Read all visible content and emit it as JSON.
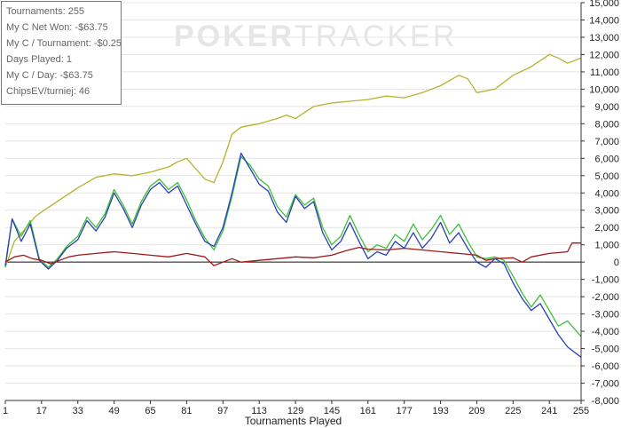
{
  "stats": [
    "Tournaments: 255",
    "My C Net Won: -$63.75",
    "My C / Tournament: -$0.25",
    "Days Played: 1",
    "My C / Day: -$63.75",
    "ChipsEV/turniej: 46"
  ],
  "watermark": {
    "bold": "POKER",
    "light": "TRACKER"
  },
  "chart_data": {
    "type": "line",
    "xlabel": "Tournaments Played",
    "x_ticks": [
      1,
      17,
      33,
      49,
      65,
      81,
      97,
      113,
      129,
      145,
      161,
      177,
      193,
      209,
      225,
      241,
      255
    ],
    "xlim": [
      1,
      255
    ],
    "ylim": [
      -8000,
      15000
    ],
    "y_ticks": [
      -8000,
      -7000,
      -6000,
      -5000,
      -4000,
      -3000,
      -2000,
      -1000,
      0,
      1000,
      2000,
      3000,
      4000,
      5000,
      6000,
      7000,
      8000,
      9000,
      10000,
      11000,
      12000,
      13000,
      14000,
      15000
    ],
    "y_tick_labels": [
      "-8,000",
      "-7,000",
      "-6,000",
      "-5,000",
      "-4,000",
      "-3,000",
      "-2,000",
      "-1,000",
      "0",
      "1,000",
      "2,000",
      "3,000",
      "4,000",
      "5,000",
      "6,000",
      "7,000",
      "8,000",
      "9,000",
      "10,000",
      "11,000",
      "12,000",
      "13,000",
      "14,000",
      "15,000"
    ],
    "grid": "horizontal",
    "legend": "none",
    "series": [
      {
        "color": "#b5b42d",
        "points": [
          [
            1,
            -300
          ],
          [
            5,
            1200
          ],
          [
            9,
            1800
          ],
          [
            14,
            2600
          ],
          [
            17,
            2900
          ],
          [
            25,
            3600
          ],
          [
            33,
            4300
          ],
          [
            41,
            4900
          ],
          [
            49,
            5100
          ],
          [
            57,
            5000
          ],
          [
            65,
            5200
          ],
          [
            73,
            5500
          ],
          [
            77,
            5800
          ],
          [
            81,
            6000
          ],
          [
            85,
            5400
          ],
          [
            89,
            4800
          ],
          [
            93,
            4600
          ],
          [
            97,
            5800
          ],
          [
            101,
            7400
          ],
          [
            105,
            7800
          ],
          [
            113,
            8000
          ],
          [
            121,
            8300
          ],
          [
            125,
            8500
          ],
          [
            129,
            8300
          ],
          [
            137,
            9000
          ],
          [
            145,
            9200
          ],
          [
            153,
            9300
          ],
          [
            161,
            9400
          ],
          [
            169,
            9600
          ],
          [
            177,
            9500
          ],
          [
            185,
            9800
          ],
          [
            193,
            10200
          ],
          [
            201,
            10800
          ],
          [
            205,
            10600
          ],
          [
            209,
            9800
          ],
          [
            217,
            10000
          ],
          [
            225,
            10800
          ],
          [
            233,
            11300
          ],
          [
            241,
            12000
          ],
          [
            245,
            11800
          ],
          [
            249,
            11500
          ],
          [
            255,
            11800
          ]
        ]
      },
      {
        "color": "#3cbf3c",
        "points": [
          [
            1,
            -300
          ],
          [
            4,
            2500
          ],
          [
            8,
            1500
          ],
          [
            12,
            2400
          ],
          [
            16,
            200
          ],
          [
            20,
            -300
          ],
          [
            24,
            200
          ],
          [
            28,
            900
          ],
          [
            33,
            1500
          ],
          [
            37,
            2600
          ],
          [
            41,
            2000
          ],
          [
            45,
            2800
          ],
          [
            49,
            4200
          ],
          [
            53,
            3300
          ],
          [
            57,
            2200
          ],
          [
            61,
            3500
          ],
          [
            65,
            4400
          ],
          [
            69,
            4800
          ],
          [
            73,
            4200
          ],
          [
            77,
            4600
          ],
          [
            81,
            3600
          ],
          [
            85,
            2400
          ],
          [
            89,
            1400
          ],
          [
            93,
            700
          ],
          [
            97,
            1800
          ],
          [
            101,
            3800
          ],
          [
            105,
            6100
          ],
          [
            109,
            5600
          ],
          [
            113,
            4800
          ],
          [
            117,
            4400
          ],
          [
            121,
            3200
          ],
          [
            125,
            2600
          ],
          [
            129,
            3900
          ],
          [
            133,
            3300
          ],
          [
            137,
            3700
          ],
          [
            141,
            2000
          ],
          [
            145,
            1000
          ],
          [
            149,
            1500
          ],
          [
            153,
            2700
          ],
          [
            157,
            1600
          ],
          [
            161,
            600
          ],
          [
            165,
            1000
          ],
          [
            169,
            800
          ],
          [
            173,
            1600
          ],
          [
            177,
            1200
          ],
          [
            181,
            2200
          ],
          [
            185,
            1300
          ],
          [
            189,
            1900
          ],
          [
            193,
            2700
          ],
          [
            197,
            1600
          ],
          [
            201,
            2200
          ],
          [
            205,
            1200
          ],
          [
            209,
            300
          ],
          [
            213,
            200
          ],
          [
            217,
            300
          ],
          [
            221,
            100
          ],
          [
            225,
            -800
          ],
          [
            229,
            -1800
          ],
          [
            233,
            -2600
          ],
          [
            237,
            -1900
          ],
          [
            241,
            -2800
          ],
          [
            245,
            -3700
          ],
          [
            249,
            -3400
          ],
          [
            255,
            -4300
          ]
        ]
      },
      {
        "color": "#2b3fb5",
        "points": [
          [
            1,
            -200
          ],
          [
            4,
            2500
          ],
          [
            8,
            1200
          ],
          [
            12,
            2200
          ],
          [
            16,
            100
          ],
          [
            20,
            -400
          ],
          [
            24,
            100
          ],
          [
            28,
            800
          ],
          [
            33,
            1300
          ],
          [
            37,
            2400
          ],
          [
            41,
            1800
          ],
          [
            45,
            2600
          ],
          [
            49,
            4000
          ],
          [
            53,
            3100
          ],
          [
            57,
            2000
          ],
          [
            61,
            3300
          ],
          [
            65,
            4200
          ],
          [
            69,
            4600
          ],
          [
            73,
            4000
          ],
          [
            77,
            4400
          ],
          [
            81,
            3300
          ],
          [
            85,
            2200
          ],
          [
            89,
            1200
          ],
          [
            93,
            900
          ],
          [
            97,
            2000
          ],
          [
            101,
            4000
          ],
          [
            105,
            6300
          ],
          [
            109,
            5400
          ],
          [
            113,
            4500
          ],
          [
            117,
            4100
          ],
          [
            121,
            2900
          ],
          [
            125,
            2300
          ],
          [
            129,
            3800
          ],
          [
            133,
            3100
          ],
          [
            137,
            3500
          ],
          [
            141,
            1700
          ],
          [
            145,
            700
          ],
          [
            149,
            1200
          ],
          [
            153,
            2300
          ],
          [
            157,
            1200
          ],
          [
            161,
            200
          ],
          [
            165,
            600
          ],
          [
            169,
            400
          ],
          [
            173,
            1200
          ],
          [
            177,
            800
          ],
          [
            181,
            1700
          ],
          [
            185,
            800
          ],
          [
            189,
            1400
          ],
          [
            193,
            2300
          ],
          [
            197,
            1100
          ],
          [
            201,
            1700
          ],
          [
            205,
            800
          ],
          [
            209,
            0
          ],
          [
            213,
            -300
          ],
          [
            217,
            200
          ],
          [
            221,
            -100
          ],
          [
            225,
            -1200
          ],
          [
            229,
            -2100
          ],
          [
            233,
            -2800
          ],
          [
            237,
            -2400
          ],
          [
            241,
            -3300
          ],
          [
            245,
            -4200
          ],
          [
            249,
            -4900
          ],
          [
            255,
            -5500
          ]
        ]
      },
      {
        "color": "#a01818",
        "points": [
          [
            1,
            0
          ],
          [
            5,
            300
          ],
          [
            9,
            400
          ],
          [
            13,
            200
          ],
          [
            17,
            100
          ],
          [
            21,
            -100
          ],
          [
            25,
            100
          ],
          [
            29,
            300
          ],
          [
            33,
            400
          ],
          [
            41,
            500
          ],
          [
            49,
            600
          ],
          [
            57,
            500
          ],
          [
            65,
            400
          ],
          [
            73,
            300
          ],
          [
            81,
            500
          ],
          [
            89,
            300
          ],
          [
            93,
            -200
          ],
          [
            97,
            0
          ],
          [
            101,
            200
          ],
          [
            105,
            0
          ],
          [
            113,
            100
          ],
          [
            121,
            200
          ],
          [
            129,
            300
          ],
          [
            137,
            250
          ],
          [
            145,
            400
          ],
          [
            151,
            650
          ],
          [
            157,
            850
          ],
          [
            161,
            750
          ],
          [
            169,
            700
          ],
          [
            177,
            800
          ],
          [
            185,
            700
          ],
          [
            193,
            600
          ],
          [
            201,
            500
          ],
          [
            209,
            400
          ],
          [
            213,
            100
          ],
          [
            217,
            200
          ],
          [
            225,
            250
          ],
          [
            229,
            0
          ],
          [
            233,
            300
          ],
          [
            241,
            500
          ],
          [
            249,
            600
          ],
          [
            251,
            1100
          ],
          [
            255,
            1100
          ]
        ]
      }
    ]
  }
}
